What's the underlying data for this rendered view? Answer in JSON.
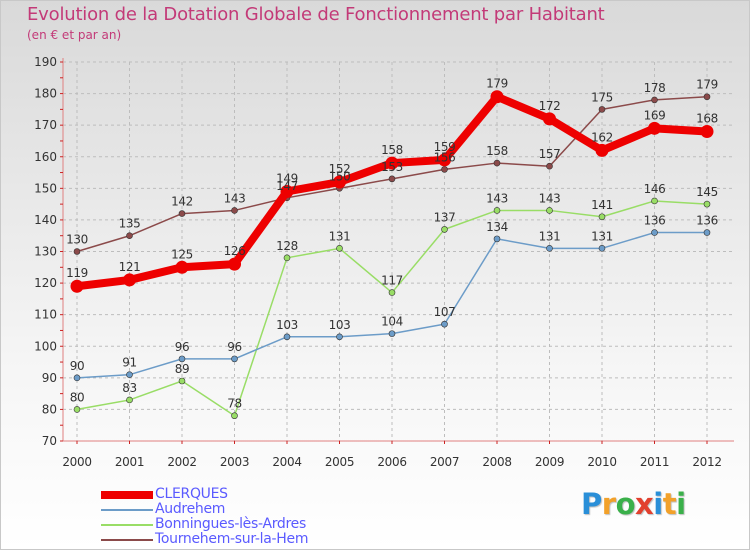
{
  "chart_data": {
    "type": "line",
    "title": "Evolution de la Dotation Globale de Fonctionnement par Habitant",
    "subtitle": "(en € et par an)",
    "xlabel": "",
    "ylabel": "",
    "ylim": [
      70,
      190
    ],
    "grid": true,
    "legend_position": "bottom-left",
    "categories": [
      "2000",
      "2001",
      "2002",
      "2003",
      "2004",
      "2005",
      "2006",
      "2007",
      "2008",
      "2009",
      "2010",
      "2011",
      "2012"
    ],
    "y_ticks": [
      "70",
      "80",
      "90",
      "100",
      "110",
      "120",
      "130",
      "140",
      "150",
      "160",
      "170",
      "180",
      "190"
    ],
    "series": [
      {
        "name": "CLERQUES",
        "color": "#ee0000",
        "labels": [
          "119",
          "121",
          "125",
          "126",
          "149",
          "152",
          "158",
          "159",
          "179",
          "172",
          "162",
          "169",
          "168"
        ],
        "values": [
          119,
          121,
          125,
          126,
          149,
          152,
          158,
          159,
          179,
          172,
          162,
          169,
          168
        ]
      },
      {
        "name": "Audrehem",
        "color": "#6c9cc8",
        "labels": [
          "90",
          "91",
          "96",
          "96",
          "103",
          "103",
          "104",
          "107",
          "134",
          "131",
          "131",
          "136",
          "136"
        ],
        "values": [
          90,
          91,
          96,
          96,
          103,
          103,
          104,
          107,
          134,
          131,
          131,
          136,
          136
        ]
      },
      {
        "name": "Bonningues-lès-Ardres",
        "color": "#99dd66",
        "labels": [
          "80",
          "83",
          "89",
          "78",
          "128",
          "131",
          "117",
          "137",
          "143",
          "143",
          "141",
          "146",
          "145"
        ],
        "values": [
          80,
          83,
          89,
          78,
          128,
          131,
          117,
          137,
          143,
          143,
          141,
          146,
          145
        ]
      },
      {
        "name": "Tournehem-sur-la-Hem",
        "color": "#8b4a4a",
        "labels": [
          "130",
          "135",
          "142",
          "143",
          "147",
          "150",
          "153",
          "156",
          "158",
          "157",
          "175",
          "178",
          "179"
        ],
        "values": [
          130,
          135,
          142,
          143,
          147,
          150,
          153,
          156,
          158,
          157,
          175,
          178,
          179
        ]
      }
    ]
  },
  "logo": {
    "letters": [
      "P",
      "r",
      "o",
      "x",
      "i",
      "t",
      "i"
    ],
    "colors": [
      "#2a8fd8",
      "#f2a12a",
      "#3ab04a",
      "#e2402e",
      "#2a8fd8",
      "#f2a12a",
      "#3ab04a"
    ]
  }
}
